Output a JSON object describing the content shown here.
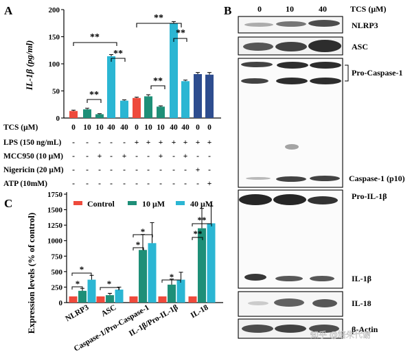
{
  "panels": {
    "a": {
      "label": "A",
      "ylabel": "IL-1β (pg/ml)",
      "y_ticks": [
        "0",
        "50",
        "100",
        "150",
        "200"
      ],
      "y_tick_values": [
        0,
        50,
        100,
        150,
        200
      ],
      "ylim": [
        0,
        200
      ],
      "bar_values": [
        13,
        16,
        7,
        114,
        32,
        37,
        40,
        21,
        175,
        68,
        81,
        80
      ],
      "bar_errors": [
        1.5,
        2,
        1,
        3,
        1.5,
        1.5,
        3,
        1.5,
        3,
        2,
        3,
        4
      ],
      "bar_colors": [
        "#ee4a3c",
        "#1e8f78",
        "#1e8f78",
        "#2bb6d3",
        "#2bb6d3",
        "#ee4a3c",
        "#1e8f78",
        "#1e8f78",
        "#2bb6d3",
        "#2bb6d3",
        "#2e4d8f",
        "#2e4d8f"
      ],
      "sig": "**",
      "rows": [
        {
          "label": "TCS (μM)",
          "values": [
            "0",
            "10",
            "10",
            "40",
            "40",
            "0",
            "10",
            "10",
            "40",
            "40",
            "0",
            "0"
          ]
        },
        {
          "label": "LPS (150 ng/mL)",
          "values": [
            "-",
            "-",
            "-",
            "-",
            "-",
            "+",
            "+",
            "+",
            "+",
            "+",
            "+",
            "+"
          ]
        },
        {
          "label": "MCC950 (10 μM)",
          "values": [
            "-",
            "-",
            "+",
            "-",
            "+",
            "-",
            "-",
            "+",
            "-",
            "+",
            "-",
            "-"
          ]
        },
        {
          "label": "Nigericin (20 μM)",
          "values": [
            "-",
            "-",
            "-",
            "-",
            "-",
            "-",
            "-",
            "-",
            "-",
            "-",
            "+",
            "-"
          ]
        },
        {
          "label": "ATP (10mM)",
          "values": [
            "-",
            "-",
            "-",
            "-",
            "-",
            "-",
            "-",
            "-",
            "-",
            "-",
            "-",
            "+"
          ]
        }
      ]
    },
    "b": {
      "label": "B",
      "tcs_label": "TCS (μM)",
      "lanes": [
        "0",
        "10",
        "40"
      ],
      "blots": [
        "NLRP3",
        "ASC",
        "Pro-Caspase-1",
        "Caspase-1 (p10)",
        "Pro-IL-1β",
        "IL-1β",
        "IL-18",
        "β-Actin"
      ]
    },
    "c": {
      "label": "C",
      "ylabel": "Expression levels (% of control)",
      "legend": [
        "Control",
        "10 μM",
        "40 μM"
      ],
      "colors": [
        "#ee4a3c",
        "#1e8f78",
        "#2bb6d3"
      ],
      "sig1": "*",
      "sig2": "**"
    }
  },
  "chart_data": {
    "type": "bar",
    "title": "",
    "xlabel": "",
    "ylabel": "Expression levels (% of control)",
    "ylim": [
      0,
      1750
    ],
    "y_ticks": [
      "0",
      "250",
      "500",
      "750",
      "1000",
      "1250",
      "1500",
      "1750"
    ],
    "y_tick_values": [
      0,
      250,
      500,
      750,
      1000,
      1250,
      1500,
      1750
    ],
    "categories": [
      "NLRP3",
      "ASC",
      "Caspase-1/Pro-Caspase-1",
      "IL-1β/Pro-IL-1β",
      "IL-18"
    ],
    "series": [
      {
        "name": "Control",
        "values": [
          100,
          100,
          100,
          100,
          100
        ],
        "errors": [
          0,
          0,
          0,
          0,
          0
        ]
      },
      {
        "name": "10 μM",
        "values": [
          190,
          120,
          850,
          290,
          1200
        ],
        "errors": [
          40,
          30,
          250,
          90,
          320
        ]
      },
      {
        "name": "40 μM",
        "values": [
          370,
          210,
          960,
          370,
          1280
        ],
        "errors": [
          70,
          40,
          330,
          120,
          280
        ]
      }
    ]
  },
  "watermark": "知乎 @培朱代谢"
}
